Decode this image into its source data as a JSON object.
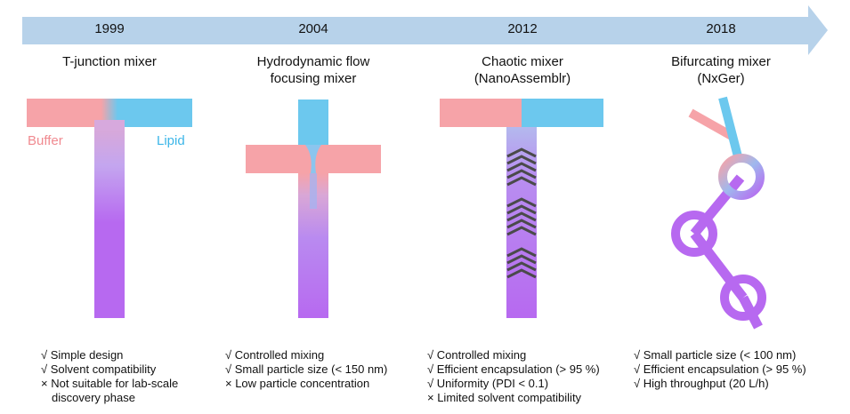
{
  "colors": {
    "arrow": "#b7d2ea",
    "buffer": "#f6a3a8",
    "lipid": "#6cc8ee",
    "mix": "#b769f0",
    "chevron": "#4a4a4a"
  },
  "stages": [
    {
      "year": "1999",
      "title": [
        "T-junction mixer"
      ],
      "labels": {
        "left": "Buffer",
        "right": "Lipid"
      },
      "notes": [
        "√ Simple design",
        "√ Solvent compatibility",
        "× Not suitable for lab-scale",
        "discovery phase"
      ]
    },
    {
      "year": "2004",
      "title": [
        "Hydrodynamic flow",
        "focusing mixer"
      ],
      "notes": [
        "√ Controlled mixing",
        "√ Small particle size (< 150 nm)",
        "× Low particle concentration"
      ]
    },
    {
      "year": "2012",
      "title": [
        "Chaotic mixer",
        "(NanoAssemblr)"
      ],
      "notes": [
        "√ Controlled mixing",
        "√ Efficient encapsulation (> 95 %)",
        "√ Uniformity (PDI < 0.1)",
        "× Limited solvent compatibility"
      ]
    },
    {
      "year": "2018",
      "title": [
        "Bifurcating mixer",
        "(NxGer)"
      ],
      "notes": [
        "√ Small particle size (< 100 nm)",
        "√ Efficient encapsulation (> 95 %)",
        "√ High throughput (20 L/h)"
      ]
    }
  ]
}
